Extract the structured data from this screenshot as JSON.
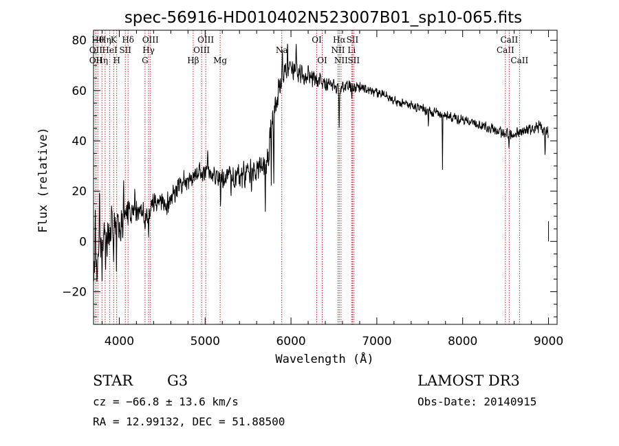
{
  "chart_data": {
    "type": "line",
    "title": "spec-56916-HD010402N523007B01_sp10-065.fits",
    "xlabel": "Wavelength (Å)",
    "ylabel": "Flux (relative)",
    "xlim": [
      3700,
      9100
    ],
    "ylim": [
      -33,
      84
    ],
    "xticks": [
      4000,
      5000,
      6000,
      7000,
      8000,
      9000
    ],
    "xtick_labels": [
      "4000",
      "5000",
      "6000",
      "7000",
      "8000",
      "9000"
    ],
    "yticks": [
      -20,
      0,
      20,
      40,
      60,
      80
    ],
    "ytick_labels": [
      "−20",
      "0",
      "20",
      "40",
      "60",
      "80"
    ],
    "spectrum_anchors": {
      "x": [
        3700,
        3760,
        3820,
        3880,
        3940,
        4000,
        4080,
        4160,
        4240,
        4320,
        4380,
        4460,
        4540,
        4620,
        4700,
        4780,
        4860,
        4940,
        5020,
        5100,
        5200,
        5300,
        5400,
        5500,
        5600,
        5700,
        5740,
        5780,
        5820,
        5860,
        5900,
        5960,
        6000,
        6100,
        6200,
        6300,
        6400,
        6500,
        6562,
        6600,
        6700,
        6800,
        6900,
        7000,
        7100,
        7200,
        7300,
        7400,
        7500,
        7600,
        7700,
        7800,
        7900,
        8000,
        8100,
        8200,
        8300,
        8400,
        8500,
        8600,
        8700,
        8800,
        8900,
        8960,
        9000
      ],
      "y": [
        -12,
        -2,
        5,
        0,
        8,
        4,
        11,
        13,
        12,
        10,
        14,
        16,
        14,
        18,
        22,
        24,
        26,
        27,
        28,
        27,
        26,
        27,
        26,
        27,
        28,
        30,
        34,
        48,
        52,
        60,
        66,
        70,
        68,
        66,
        65,
        64,
        63,
        62,
        60,
        61,
        62,
        61,
        60,
        59,
        58,
        56,
        55,
        54,
        53,
        52,
        51,
        50,
        49,
        48,
        47,
        46,
        45,
        44,
        43,
        43,
        44,
        45,
        46,
        44,
        42
      ]
    },
    "noise_amplitude": {
      "x": [
        3700,
        3900,
        4200,
        5000,
        5600,
        5800,
        6000,
        6500,
        7200,
        8500,
        9000
      ],
      "y": [
        9,
        8,
        5,
        5,
        6,
        7,
        5,
        3.2,
        2.2,
        2.4,
        3
      ]
    },
    "absorption_features": [
      {
        "x": 3740,
        "depth": 20
      },
      {
        "x": 3800,
        "depth": 22
      },
      {
        "x": 3840,
        "depth": 15
      },
      {
        "x": 3933,
        "depth": 18
      },
      {
        "x": 3968,
        "depth": 16
      },
      {
        "x": 4101,
        "depth": 10
      },
      {
        "x": 4300,
        "depth": 8
      },
      {
        "x": 4340,
        "depth": 8
      },
      {
        "x": 5180,
        "depth": 14
      },
      {
        "x": 5300,
        "depth": 10
      },
      {
        "x": 5540,
        "depth": 12
      },
      {
        "x": 5700,
        "depth": 16
      },
      {
        "x": 5770,
        "depth": 22
      },
      {
        "x": 5800,
        "depth": 30
      },
      {
        "x": 6562,
        "depth": 16
      },
      {
        "x": 6710,
        "depth": 6
      },
      {
        "x": 7600,
        "depth": 8
      },
      {
        "x": 7765,
        "depth": 22
      },
      {
        "x": 8540,
        "depth": 6
      },
      {
        "x": 8960,
        "depth": 12
      }
    ],
    "emission_features": [
      {
        "x": 3720,
        "height": 18
      },
      {
        "x": 3770,
        "height": 25
      },
      {
        "x": 3910,
        "height": 12
      },
      {
        "x": 4050,
        "height": 14
      },
      {
        "x": 4180,
        "height": 8
      },
      {
        "x": 5030,
        "height": 10
      },
      {
        "x": 5900,
        "height": 12
      },
      {
        "x": 5960,
        "height": 14
      },
      {
        "x": 6060,
        "height": 10
      },
      {
        "x": 6200,
        "height": 8
      },
      {
        "x": 8990,
        "height": 6
      }
    ],
    "tail_segment": {
      "x": 9000,
      "y_top": 8,
      "y_bottom": 0
    },
    "line_markers": [
      {
        "x": 3750,
        "row": 1,
        "label": "Hθ"
      },
      {
        "x": 3727,
        "row": 2,
        "label": "OII"
      },
      {
        "x": 3727,
        "row": 3,
        "label": "OII"
      },
      {
        "x": 3798,
        "row": 3,
        "label": "Hη"
      },
      {
        "x": 3835,
        "row": 1,
        "label": "Hη"
      },
      {
        "x": 3889,
        "row": 2,
        "label": "HeI"
      },
      {
        "x": 3934,
        "row": 1,
        "label": "K"
      },
      {
        "x": 3970,
        "row": 3,
        "label": "H"
      },
      {
        "x": 4070,
        "row": 2,
        "label": "SII"
      },
      {
        "x": 4102,
        "row": 1,
        "label": "Hδ"
      },
      {
        "x": 4300,
        "row": 3,
        "label": "G"
      },
      {
        "x": 4341,
        "row": 2,
        "label": "Hγ"
      },
      {
        "x": 4363,
        "row": 1,
        "label": "OIII"
      },
      {
        "x": 4861,
        "row": 3,
        "label": "Hβ"
      },
      {
        "x": 4959,
        "row": 2,
        "label": "OIII"
      },
      {
        "x": 5007,
        "row": 1,
        "label": "OIII"
      },
      {
        "x": 5175,
        "row": 3,
        "label": "Mg"
      },
      {
        "x": 5893,
        "row": 2,
        "label": "Na"
      },
      {
        "x": 6300,
        "row": 1,
        "label": "OI"
      },
      {
        "x": 6364,
        "row": 3,
        "label": "OI"
      },
      {
        "x": 6548,
        "row": 2,
        "label": "NII"
      },
      {
        "x": 6563,
        "row": 1,
        "label": "Hα"
      },
      {
        "x": 6583,
        "row": 3,
        "label": "NII"
      },
      {
        "x": 6707,
        "row": 2,
        "label": "Li"
      },
      {
        "x": 6716,
        "row": 1,
        "label": "SII"
      },
      {
        "x": 6731,
        "row": 3,
        "label": "SII"
      },
      {
        "x": 8498,
        "row": 2,
        "label": "CaII"
      },
      {
        "x": 8542,
        "row": 1,
        "label": "CaII"
      },
      {
        "x": 8662,
        "row": 3,
        "label": "CaII"
      }
    ],
    "marker_color": "#b22222"
  },
  "info": {
    "object_class": "STAR",
    "subclass": "G3",
    "survey": "LAMOST DR3",
    "cz": "cz = −66.8 ± 13.6 km/s",
    "obs_date": "Obs-Date: 20140915",
    "coords": "RA =  12.99132, DEC =  51.88500"
  }
}
